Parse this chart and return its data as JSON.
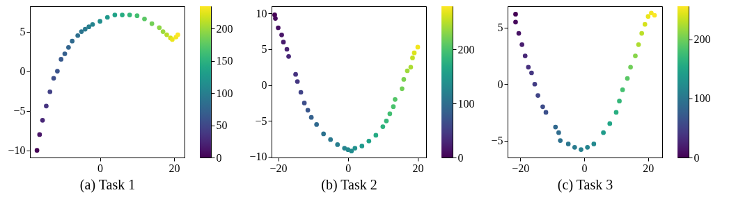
{
  "chart_data": [
    {
      "type": "scatter",
      "xlabel": "(a) Task 1",
      "marker": "circle",
      "grid": false,
      "xlim": [
        -18.9,
        22.8
      ],
      "ylim": [
        -10.9,
        8.2
      ],
      "xticks": [
        0,
        20
      ],
      "yticks": [
        -10,
        -5,
        0,
        5
      ],
      "clim": [
        0,
        235
      ],
      "cticks": [
        0,
        50,
        100,
        150,
        200
      ],
      "x": [
        -17,
        -16.3,
        -15.5,
        -14.5,
        -13.5,
        -12.5,
        -11.5,
        -10.5,
        -9.5,
        -8.5,
        -7.5,
        -6,
        -5,
        -4,
        -3,
        -2,
        0,
        2,
        4,
        6,
        8,
        10,
        12,
        14,
        16,
        17,
        18,
        19,
        19.5,
        20.5,
        21
      ],
      "values": [
        -10,
        -8,
        -6.2,
        -4.4,
        -2.6,
        -0.9,
        0,
        1.5,
        2.2,
        3,
        3.8,
        4.5,
        5,
        5.3,
        5.6,
        5.9,
        6.3,
        6.8,
        7.1,
        7.1,
        7.1,
        7,
        6.6,
        6,
        5.5,
        5,
        4.6,
        4.2,
        4,
        4.3,
        4.6
      ],
      "cvalues": [
        0,
        12,
        25,
        35,
        45,
        55,
        60,
        65,
        70,
        75,
        80,
        85,
        90,
        95,
        100,
        105,
        115,
        125,
        135,
        145,
        155,
        165,
        175,
        185,
        195,
        200,
        210,
        220,
        228,
        232,
        235
      ]
    },
    {
      "type": "scatter",
      "xlabel": "(b) Task 2",
      "marker": "circle",
      "grid": false,
      "xlim": [
        -21.9,
        22.4
      ],
      "ylim": [
        -10.1,
        11
      ],
      "xticks": [
        -20,
        0,
        20
      ],
      "yticks": [
        -10,
        -5,
        0,
        5,
        10
      ],
      "clim": [
        0,
        280
      ],
      "cticks": [
        0,
        100,
        200
      ],
      "x": [
        -21,
        -20.8,
        -20,
        -19,
        -18.5,
        -17.5,
        -17,
        -15,
        -14.5,
        -13.5,
        -12.5,
        -11.5,
        -10.5,
        -9,
        -7,
        -5,
        -3,
        -1,
        0,
        1,
        2,
        4,
        6,
        8,
        10,
        11,
        12,
        13,
        13.5,
        15.5,
        16,
        17,
        18,
        18.5,
        19,
        20
      ],
      "values": [
        9.8,
        9.3,
        8,
        7,
        6,
        5,
        4,
        1.5,
        0.5,
        -1,
        -2.5,
        -3.5,
        -4.5,
        -5.5,
        -6.8,
        -7.6,
        -8.3,
        -8.8,
        -9,
        -9.2,
        -8.8,
        -8.5,
        -7.8,
        -7,
        -5.8,
        -5,
        -4,
        -3,
        -2,
        -0.5,
        0.8,
        2,
        2.5,
        3.8,
        4.5,
        5.3
      ],
      "cvalues": [
        0,
        5,
        10,
        15,
        20,
        25,
        30,
        40,
        45,
        55,
        65,
        75,
        85,
        95,
        105,
        112,
        118,
        125,
        130,
        135,
        140,
        150,
        160,
        170,
        180,
        187,
        195,
        200,
        205,
        220,
        225,
        240,
        245,
        255,
        265,
        275
      ]
    },
    {
      "type": "scatter",
      "xlabel": "(c) Task 3",
      "marker": "circle",
      "grid": false,
      "xlim": [
        -24,
        24.4
      ],
      "ylim": [
        -6.5,
        6.9
      ],
      "xticks": [
        -20,
        0,
        20
      ],
      "yticks": [
        -5,
        0,
        5
      ],
      "clim": [
        0,
        256
      ],
      "cticks": [
        0,
        100,
        200
      ],
      "x": [
        -21.5,
        -21.5,
        -20.5,
        -19.5,
        -18.5,
        -17.5,
        -16.5,
        -15.5,
        -14.5,
        -13,
        -12,
        -9,
        -8,
        -7.5,
        -5,
        -3,
        -1,
        1,
        3,
        6,
        8,
        10,
        11,
        12,
        13.5,
        14.5,
        16,
        17,
        18,
        19,
        20,
        21,
        22
      ],
      "values": [
        6.2,
        5.5,
        4.5,
        3.5,
        2.5,
        1.5,
        1,
        0,
        -1,
        -2,
        -2.5,
        -3.8,
        -4.3,
        -5,
        -5.3,
        -5.6,
        -5.8,
        -5.6,
        -5.3,
        -4.3,
        -3.5,
        -2.5,
        -1.5,
        -0.5,
        0.5,
        1.5,
        2.5,
        3.5,
        4.5,
        5.3,
        6,
        6.3,
        6.1
      ],
      "cvalues": [
        0,
        5,
        12,
        20,
        28,
        35,
        40,
        45,
        52,
        58,
        62,
        85,
        90,
        95,
        100,
        105,
        110,
        115,
        120,
        140,
        150,
        160,
        170,
        180,
        190,
        200,
        210,
        225,
        230,
        240,
        248,
        252,
        255
      ]
    }
  ]
}
